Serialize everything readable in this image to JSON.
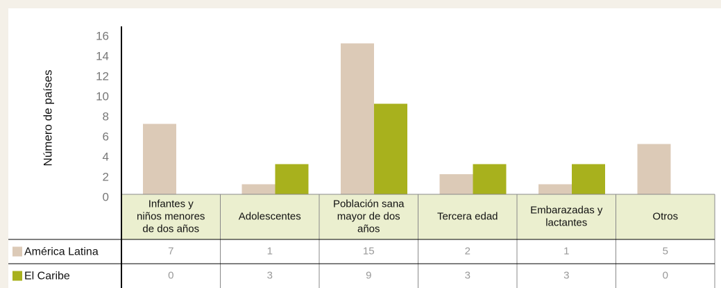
{
  "chart_data": {
    "type": "bar",
    "y_label": "Número de países",
    "categories": [
      "Infantes y niños menores de dos años",
      "Adolescentes",
      "Población sana mayor de dos años",
      "Tercera edad",
      "Embarazadas y lactantes",
      "Otros"
    ],
    "series": [
      {
        "name": "América Latina",
        "color": "#dccab7",
        "values": [
          7,
          1,
          15,
          2,
          1,
          5
        ]
      },
      {
        "name": "El Caribe",
        "color": "#a8b11d",
        "values": [
          0,
          3,
          9,
          3,
          3,
          0
        ]
      }
    ],
    "ylim": [
      0,
      16
    ],
    "yticks": [
      0,
      2,
      4,
      6,
      8,
      10,
      12,
      14,
      16
    ]
  }
}
